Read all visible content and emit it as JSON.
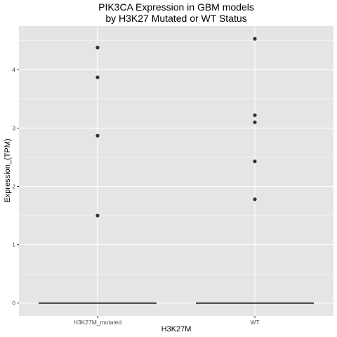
{
  "chart_data": {
    "type": "boxplot",
    "title_lines": [
      "PIK3CA Expression in GBM models",
      "by H3K27 Mutated or WT Status"
    ],
    "xlabel": "H3K27M",
    "ylabel": "Expression_(TPM)",
    "categories": [
      "H3K27M_mutated",
      "WT"
    ],
    "ylim": [
      -0.22,
      4.75
    ],
    "yticks": [
      0,
      1,
      2,
      3,
      4
    ],
    "ytick_labels": [
      "0",
      "1",
      "2",
      "3",
      "4"
    ],
    "grid": true,
    "background": "#e5e5e5",
    "grid_color": "#ffffff",
    "point_color": "#333333",
    "box_color": "#333333",
    "series": [
      {
        "category": "H3K27M_mutated",
        "median": 0,
        "outliers": [
          4.38,
          3.87,
          2.87,
          1.5
        ]
      },
      {
        "category": "WT",
        "median": 0,
        "outliers": [
          4.53,
          3.22,
          3.1,
          2.43,
          1.78
        ]
      }
    ]
  }
}
